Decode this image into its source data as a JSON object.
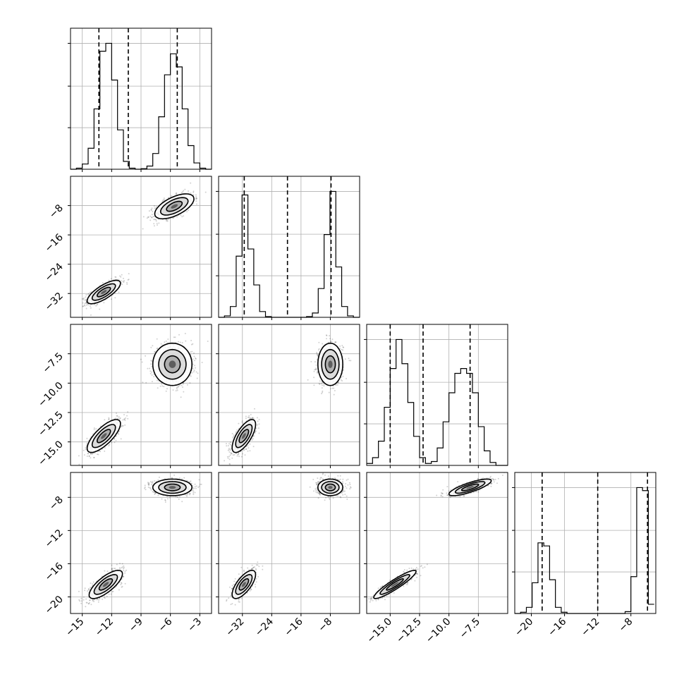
{
  "chart_data": {
    "type": "corner",
    "params": [
      {
        "id": "p0",
        "range": [
          -16.2,
          -1.8
        ],
        "ticks": [
          -15,
          -12,
          -9,
          -6,
          -3
        ],
        "tick_labels": [
          "−15",
          "−12",
          "−9",
          "−6",
          "−3"
        ],
        "hist": {
          "bins": [
            -16.2,
            -15.6,
            -15.0,
            -14.4,
            -13.8,
            -13.2,
            -12.6,
            -12.0,
            -11.4,
            -10.8,
            -10.2,
            -9.6,
            -9.0,
            -8.4,
            -7.8,
            -7.2,
            -6.6,
            -6.0,
            -5.4,
            -4.8,
            -4.2,
            -3.6,
            -3.0,
            -2.4,
            -1.8
          ],
          "counts": [
            0,
            2,
            10,
            40,
            115,
            225,
            240,
            170,
            75,
            15,
            2,
            0,
            1,
            6,
            30,
            100,
            180,
            220,
            195,
            115,
            45,
            12,
            2,
            0
          ]
        },
        "quantiles": [
          -13.3,
          -10.3,
          -5.3
        ]
      },
      {
        "id": "p1",
        "range": [
          -38.5,
          0
        ],
        "ticks": [
          -32,
          -24,
          -16,
          -8
        ],
        "tick_labels": [
          "−32",
          "−24",
          "−16",
          "−8"
        ],
        "hist": {
          "bins": [
            -38.5,
            -36.9,
            -35.3,
            -33.7,
            -32.1,
            -30.5,
            -28.9,
            -27.3,
            -25.7,
            -24.1,
            -22.5,
            -20.9,
            -19.3,
            -17.7,
            -16.1,
            -14.5,
            -12.9,
            -11.3,
            -9.7,
            -8.1,
            -6.5,
            -4.9,
            -3.3,
            -1.7,
            0
          ],
          "counts": [
            0,
            2,
            15,
            85,
            170,
            95,
            45,
            8,
            1,
            0,
            0,
            0,
            0,
            0,
            0,
            1,
            6,
            40,
            115,
            175,
            70,
            15,
            2,
            0
          ]
        },
        "quantiles": [
          -31.5,
          -19.7,
          -7.8
        ]
      },
      {
        "id": "p2",
        "range": [
          -17.0,
          -5.0
        ],
        "ticks": [
          -15.0,
          -12.5,
          -10.0,
          -7.5
        ],
        "tick_labels": [
          "−15.0",
          "−12.5",
          "−10.0",
          "−7.5"
        ],
        "hist": {
          "bins": [
            -17.0,
            -16.5,
            -16.0,
            -15.5,
            -15.0,
            -14.5,
            -14.0,
            -13.5,
            -13.0,
            -12.5,
            -12.0,
            -11.5,
            -11.0,
            -10.5,
            -10.0,
            -9.5,
            -9.0,
            -8.5,
            -8.0,
            -7.5,
            -7.0,
            -6.5,
            -6.0,
            -5.5,
            -5.0
          ],
          "counts": [
            2,
            8,
            25,
            60,
            100,
            130,
            105,
            65,
            30,
            8,
            2,
            4,
            18,
            45,
            75,
            95,
            100,
            95,
            75,
            40,
            15,
            3,
            0,
            0
          ]
        },
        "quantiles": [
          -15.0,
          -12.2,
          -8.2
        ]
      },
      {
        "id": "p3",
        "range": [
          -22.0,
          -5.0
        ],
        "ticks": [
          -20,
          -16,
          -12,
          -8
        ],
        "tick_labels": [
          "−20",
          "−16",
          "−12",
          "−8"
        ],
        "hist": {
          "bins": [
            -22.0,
            -21.3,
            -20.6,
            -19.9,
            -19.2,
            -18.5,
            -17.8,
            -17.1,
            -16.4,
            -15.7,
            -15.0,
            -14.3,
            -13.6,
            -12.9,
            -12.2,
            -11.5,
            -10.8,
            -10.1,
            -9.4,
            -8.7,
            -8.0,
            -7.3,
            -6.6,
            -5.9,
            -5.2
          ],
          "counts": [
            0,
            2,
            10,
            50,
            115,
            110,
            55,
            10,
            2,
            0,
            0,
            0,
            0,
            0,
            0,
            0,
            0,
            0,
            0,
            3,
            60,
            205,
            200,
            15
          ]
        },
        "quantiles": [
          -18.7,
          -12.0,
          -6.0
        ]
      }
    ],
    "pairs": [
      {
        "row": 1,
        "col": 0,
        "modes": [
          {
            "mean": [
              -12.8,
              -31.6
            ],
            "sd": [
              0.85,
              1.6
            ],
            "rho": 0.75,
            "weight": 0.5
          },
          {
            "mean": [
              -5.6,
              -8.2
            ],
            "sd": [
              1.0,
              1.7
            ],
            "rho": 0.6,
            "weight": 0.5
          }
        ]
      },
      {
        "row": 2,
        "col": 0,
        "modes": [
          {
            "mean": [
              -12.8,
              -14.5
            ],
            "sd": [
              0.85,
              0.7
            ],
            "rho": 0.75,
            "weight": 0.5
          },
          {
            "mean": [
              -5.8,
              -8.4
            ],
            "sd": [
              1.0,
              0.9
            ],
            "rho": 0.0,
            "weight": 0.5
          }
        ]
      },
      {
        "row": 2,
        "col": 1,
        "modes": [
          {
            "mean": [
              -31.6,
              -14.5
            ],
            "sd": [
              1.6,
              0.7
            ],
            "rho": 0.7,
            "weight": 0.5
          },
          {
            "mean": [
              -8.0,
              -8.4
            ],
            "sd": [
              1.7,
              0.9
            ],
            "rho": 0.0,
            "weight": 0.5
          }
        ]
      },
      {
        "row": 3,
        "col": 0,
        "modes": [
          {
            "mean": [
              -12.6,
              -18.5
            ],
            "sd": [
              0.85,
              0.85
            ],
            "rho": 0.75,
            "weight": 0.5
          },
          {
            "mean": [
              -5.8,
              -6.8
            ],
            "sd": [
              1.0,
              0.5
            ],
            "rho": 0.0,
            "weight": 0.5
          }
        ]
      },
      {
        "row": 3,
        "col": 1,
        "modes": [
          {
            "mean": [
              -31.6,
              -18.5
            ],
            "sd": [
              1.6,
              0.85
            ],
            "rho": 0.7,
            "weight": 0.5
          },
          {
            "mean": [
              -8.0,
              -6.8
            ],
            "sd": [
              1.7,
              0.5
            ],
            "rho": 0.0,
            "weight": 0.5
          }
        ]
      },
      {
        "row": 3,
        "col": 2,
        "modes": [
          {
            "mean": [
              -14.6,
              -18.5
            ],
            "sd": [
              0.9,
              0.85
            ],
            "rho": 0.92,
            "weight": 0.5
          },
          {
            "mean": [
              -8.2,
              -6.8
            ],
            "sd": [
              0.9,
              0.5
            ],
            "rho": 0.8,
            "weight": 0.5
          }
        ]
      }
    ],
    "y_axes": {
      "row1": {
        "range": [
          -38.5,
          0
        ],
        "ticks": [
          -8,
          -16,
          -24,
          -32
        ],
        "tick_labels": [
          "−8",
          "−16",
          "−24",
          "−32"
        ]
      },
      "row2": {
        "range": [
          -17.0,
          -5.0
        ],
        "ticks": [
          -7.5,
          -10.0,
          -12.5,
          -15.0
        ],
        "tick_labels": [
          "−7.5",
          "−10.0",
          "−12.5",
          "−15.0"
        ]
      },
      "row3": {
        "range": [
          -22.0,
          -5.0
        ],
        "ticks": [
          -8,
          -12,
          -16,
          -20
        ],
        "tick_labels": [
          "−8",
          "−12",
          "−16",
          "−20"
        ]
      }
    },
    "grid": true,
    "contour_levels": 3,
    "samples_per_mode": 700
  }
}
